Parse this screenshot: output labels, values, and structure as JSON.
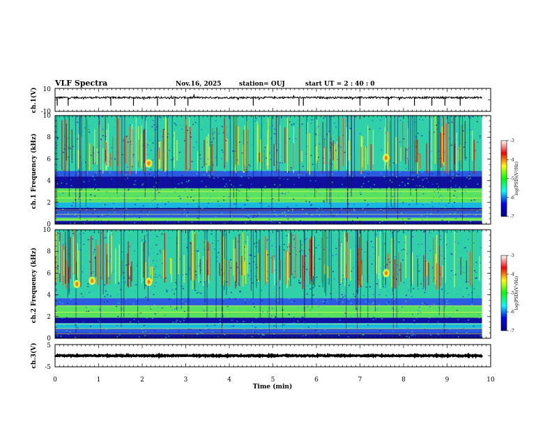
{
  "header": {
    "title": "VLF Spectra",
    "date": "Nov.16, 2025",
    "station": "station= OUJ",
    "start_time": "start  UT =  2 : 40 : 0"
  },
  "chart_data": [
    {
      "type": "line",
      "panel": "ch1-waveform",
      "ylabel": "ch.1(V)",
      "ylim": [
        -10,
        10
      ],
      "ytick_labels": [
        "10",
        "-10"
      ],
      "baseline_value": 2,
      "trace_color": "#000000"
    },
    {
      "type": "heatmap",
      "panel": "ch1-spectrogram",
      "ylabel": "ch.1 Frequency (kHz)",
      "ylim": [
        0,
        10
      ],
      "yticks": [
        0,
        2,
        4,
        6,
        8,
        10
      ],
      "xlim": [
        0,
        10
      ],
      "data_end_min": 9.8,
      "colorbar": {
        "label": "log(PSD)(V²/Hz)",
        "range": [
          -7,
          -3
        ],
        "ticks": [
          -3,
          -4,
          -5,
          -6,
          -7
        ]
      },
      "bands": [
        {
          "from_khz": 0.0,
          "to_khz": 0.3,
          "level": "dark-blue"
        },
        {
          "from_khz": 0.3,
          "to_khz": 0.6,
          "level": "green"
        },
        {
          "from_khz": 0.6,
          "to_khz": 1.2,
          "level": "blue"
        },
        {
          "from_khz": 1.2,
          "to_khz": 1.5,
          "level": "dark-blue"
        },
        {
          "from_khz": 1.5,
          "to_khz": 2.0,
          "level": "cyan"
        },
        {
          "from_khz": 2.0,
          "to_khz": 3.3,
          "level": "green"
        },
        {
          "from_khz": 3.3,
          "to_khz": 4.4,
          "level": "dark-blue"
        },
        {
          "from_khz": 4.4,
          "to_khz": 4.9,
          "level": "blue"
        },
        {
          "from_khz": 4.9,
          "to_khz": 10.0,
          "level": "cyan-green"
        }
      ]
    },
    {
      "type": "heatmap",
      "panel": "ch2-spectrogram",
      "ylabel": "ch.2 Frequency (kHz)",
      "ylim": [
        0,
        10
      ],
      "yticks": [
        0,
        2,
        4,
        6,
        8,
        10
      ],
      "xlim": [
        0,
        10
      ],
      "data_end_min": 9.8,
      "colorbar": {
        "label": "log(PSD)(V²/Hz)",
        "range": [
          -7,
          -3
        ],
        "ticks": [
          -3,
          -4,
          -5,
          -6,
          -7
        ]
      },
      "bands": [
        {
          "from_khz": 0.0,
          "to_khz": 0.5,
          "level": "dark-blue"
        },
        {
          "from_khz": 0.5,
          "to_khz": 0.9,
          "level": "blue"
        },
        {
          "from_khz": 0.9,
          "to_khz": 1.4,
          "level": "cyan"
        },
        {
          "from_khz": 1.4,
          "to_khz": 1.9,
          "level": "dark-blue"
        },
        {
          "from_khz": 1.9,
          "to_khz": 3.0,
          "level": "green"
        },
        {
          "from_khz": 3.0,
          "to_khz": 3.7,
          "level": "blue"
        },
        {
          "from_khz": 3.7,
          "to_khz": 10.0,
          "level": "cyan-green"
        }
      ]
    },
    {
      "type": "line",
      "panel": "ch3-waveform",
      "ylabel": "ch.3(V)",
      "ylim": [
        -5,
        5
      ],
      "ytick_labels": [
        "5",
        "-5"
      ],
      "baseline_value": 0,
      "trace_color": "#000000"
    }
  ],
  "x_axis": {
    "label": "Time (min)",
    "range": [
      0,
      10
    ],
    "ticks": [
      "0",
      "1",
      "2",
      "3",
      "4",
      "5",
      "6",
      "7",
      "8",
      "9",
      "10"
    ]
  },
  "colors": {
    "dark-blue": "#1010a0",
    "blue": "#2a5be0",
    "cyan": "#18b8e0",
    "cyan-green": "#30d0a8",
    "green": "#58e060",
    "colormap": [
      "#00008f",
      "#0000ff",
      "#00ffff",
      "#00ff00",
      "#ffff00",
      "#ff0000",
      "#ffffff"
    ]
  }
}
